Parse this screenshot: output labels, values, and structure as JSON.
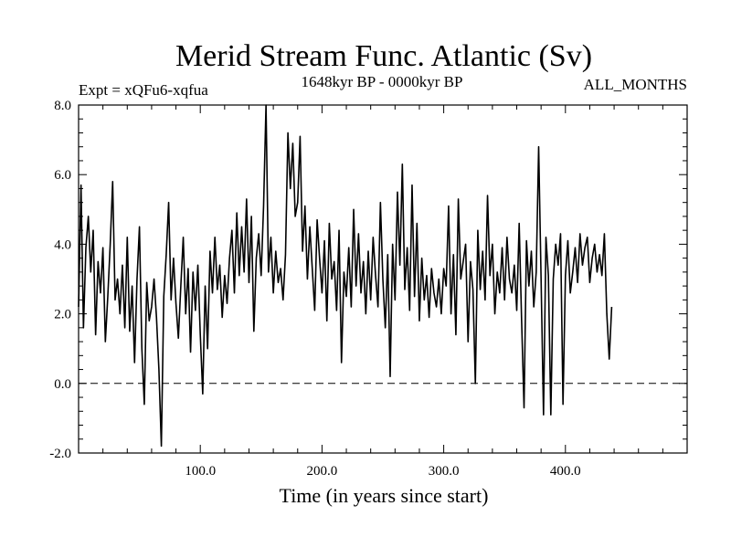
{
  "chart_data": {
    "type": "line",
    "title": "Merid Stream Func. Atlantic (Sv)",
    "expt_label": "Expt = xQFu6-xqfua",
    "period_label": "1648kyr BP - 0000kyr BP",
    "months_label": "ALL_MONTHS",
    "xlabel": "Time (in years since start)",
    "ylabel": "",
    "xlim": [
      0,
      500
    ],
    "ylim": [
      -2.0,
      8.0
    ],
    "x_ticks": [
      100,
      200,
      300,
      400
    ],
    "x_tick_labels": [
      "100.0",
      "200.0",
      "300.0",
      "400.0"
    ],
    "y_ticks": [
      -2,
      0,
      2,
      4,
      6,
      8
    ],
    "y_tick_labels": [
      "-2.0",
      "0.0",
      "2.0",
      "4.0",
      "6.0",
      "8.0"
    ],
    "reference_line": 0.0,
    "series": [
      {
        "name": "Merid Stream Func. Atlantic",
        "x_start": 0,
        "x_step": 2,
        "values": [
          2.2,
          5.7,
          1.6,
          3.9,
          4.8,
          3.2,
          4.4,
          1.4,
          3.5,
          2.6,
          3.9,
          1.2,
          2.5,
          4.0,
          5.8,
          2.4,
          3.0,
          2.0,
          3.4,
          1.6,
          4.2,
          1.5,
          2.8,
          0.6,
          3.0,
          4.5,
          1.0,
          -0.6,
          2.9,
          1.8,
          2.2,
          3.0,
          1.9,
          0.4,
          -1.8,
          2.5,
          3.7,
          5.2,
          2.4,
          3.6,
          2.3,
          1.3,
          2.8,
          4.2,
          2.0,
          3.3,
          0.9,
          3.2,
          2.1,
          3.4,
          1.4,
          -0.3,
          2.8,
          1.0,
          3.8,
          2.6,
          4.2,
          2.7,
          3.4,
          1.9,
          3.1,
          2.3,
          3.6,
          4.4,
          2.6,
          4.9,
          3.1,
          4.5,
          3.2,
          5.3,
          2.9,
          4.8,
          1.5,
          3.6,
          4.3,
          3.1,
          5.1,
          8.0,
          3.2,
          4.2,
          2.6,
          3.8,
          2.9,
          3.3,
          2.4,
          3.7,
          7.2,
          5.6,
          6.9,
          4.8,
          5.2,
          7.1,
          3.8,
          5.1,
          3.0,
          4.5,
          3.3,
          2.1,
          4.7,
          3.6,
          2.6,
          4.1,
          1.8,
          4.6,
          3.0,
          3.5,
          2.1,
          4.4,
          0.6,
          3.2,
          2.5,
          3.9,
          2.2,
          5.0,
          2.8,
          4.3,
          2.6,
          3.5,
          2.0,
          3.8,
          2.4,
          4.2,
          3.1,
          2.2,
          5.2,
          3.0,
          1.6,
          3.7,
          0.2,
          4.0,
          2.4,
          5.5,
          3.4,
          6.3,
          2.7,
          3.9,
          2.1,
          5.7,
          2.5,
          4.6,
          1.8,
          3.6,
          2.4,
          3.1,
          1.9,
          3.3,
          2.6,
          2.2,
          3.0,
          2.0,
          3.3,
          2.8,
          5.1,
          2.0,
          3.7,
          1.4,
          5.3,
          3.0,
          3.5,
          4.0,
          1.2,
          3.5,
          2.7,
          0.0,
          4.4,
          2.7,
          3.8,
          2.4,
          5.4,
          3.1,
          4.0,
          2.0,
          3.2,
          2.6,
          3.9,
          2.4,
          4.2,
          3.0,
          2.6,
          3.4,
          2.1,
          4.6,
          1.8,
          -0.7,
          4.1,
          2.8,
          3.8,
          2.2,
          3.2,
          6.8,
          3.0,
          -0.9,
          4.2,
          3.1,
          -0.9,
          3.0,
          4.0,
          3.4,
          4.3,
          -0.6,
          3.1,
          4.1,
          2.6,
          3.2,
          3.9,
          2.9,
          4.3,
          3.4,
          3.9,
          4.2,
          2.9,
          3.6,
          4.0,
          3.2,
          3.7,
          3.1,
          4.3,
          2.0,
          0.7,
          2.2
        ]
      }
    ]
  }
}
